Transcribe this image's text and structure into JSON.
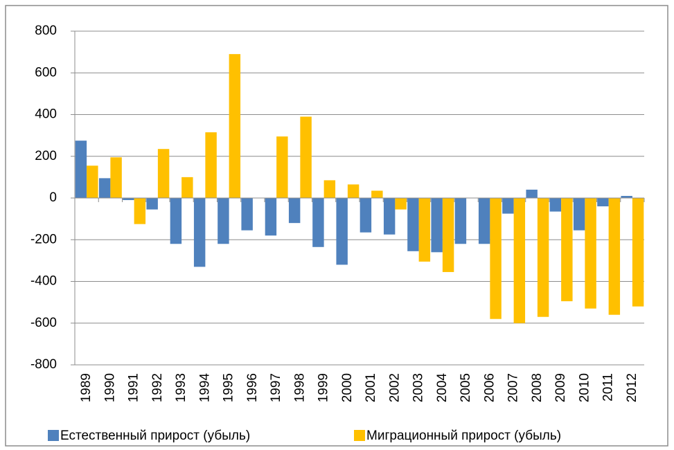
{
  "chart_data": {
    "type": "bar",
    "categories": [
      "1989",
      "1990",
      "1991",
      "1992",
      "1993",
      "1994",
      "1995",
      "1996",
      "1997",
      "1998",
      "1999",
      "2000",
      "2001",
      "2002",
      "2003",
      "2004",
      "2005",
      "2006",
      "2007",
      "2008",
      "2009",
      "2010",
      "2011",
      "2012"
    ],
    "series": [
      {
        "name": "Естественный прирост (убыль)",
        "color": "#4f81bd",
        "values": [
          275,
          95,
          -10,
          -55,
          -220,
          -330,
          -220,
          -155,
          -180,
          -120,
          -235,
          -320,
          -165,
          -175,
          -255,
          -260,
          -220,
          -220,
          -75,
          40,
          -65,
          -155,
          -40,
          10
        ]
      },
      {
        "name": "Миграционный прирост (убыль)",
        "color": "#ffc000",
        "values": [
          155,
          195,
          -125,
          235,
          100,
          315,
          690,
          0,
          295,
          390,
          85,
          65,
          35,
          -55,
          -305,
          -355,
          0,
          -580,
          -600,
          -570,
          -495,
          -530,
          -560,
          -520
        ]
      }
    ],
    "ylim": [
      -800,
      800
    ],
    "yticks": [
      -800,
      -600,
      -400,
      -200,
      0,
      200,
      400,
      600,
      800
    ],
    "grid": true,
    "legend": "bottom"
  }
}
